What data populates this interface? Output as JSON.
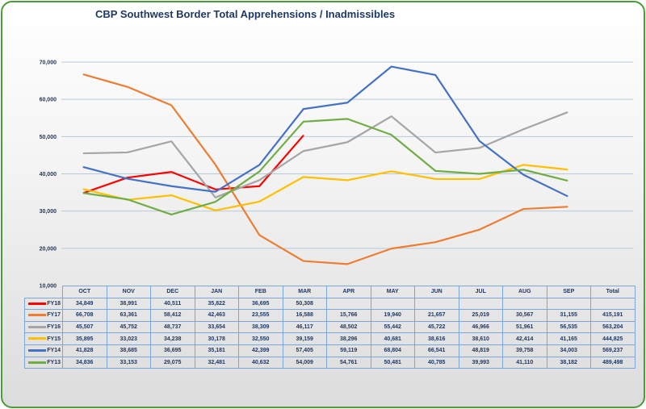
{
  "chart_data": {
    "type": "line",
    "title": "CBP Southwest Border Total Apprehensions / Inadmissibles",
    "categories": [
      "OCT",
      "NOV",
      "DEC",
      "JAN",
      "FEB",
      "MAR",
      "APR",
      "MAY",
      "JUN",
      "JUL",
      "AUG",
      "SEP"
    ],
    "total_label": "Total",
    "ylim": [
      10000,
      70000
    ],
    "yticks": [
      "10,000",
      "20,000",
      "30,000",
      "40,000",
      "50,000",
      "60,000",
      "70,000"
    ],
    "ytick_values": [
      10000,
      20000,
      30000,
      40000,
      50000,
      60000,
      70000
    ],
    "grid": true,
    "legend": "table-left",
    "series": [
      {
        "name": "FY18",
        "color": "#ff0000",
        "values": [
          34849,
          38991,
          40511,
          35822,
          36695,
          50308,
          null,
          null,
          null,
          null,
          null,
          null
        ],
        "labels": [
          "34,849",
          "38,991",
          "40,511",
          "35,822",
          "36,695",
          "50,308",
          "",
          "",
          "",
          "",
          "",
          ""
        ],
        "total": ""
      },
      {
        "name": "FY17",
        "color": "#ed7d31",
        "values": [
          66708,
          63361,
          58412,
          42463,
          23555,
          16588,
          15766,
          19940,
          21657,
          25019,
          30567,
          31155
        ],
        "labels": [
          "66,708",
          "63,361",
          "58,412",
          "42,463",
          "23,555",
          "16,588",
          "15,766",
          "19,940",
          "21,657",
          "25,019",
          "30,567",
          "31,155"
        ],
        "total": "415,191"
      },
      {
        "name": "FY16",
        "color": "#a5a5a5",
        "values": [
          45507,
          45752,
          48737,
          33654,
          38309,
          46117,
          48502,
          55442,
          45722,
          46966,
          51961,
          56535
        ],
        "labels": [
          "45,507",
          "45,752",
          "48,737",
          "33,654",
          "38,309",
          "46,117",
          "48,502",
          "55,442",
          "45,722",
          "46,966",
          "51,961",
          "56,535"
        ],
        "total": "563,204"
      },
      {
        "name": "FY15",
        "color": "#ffc000",
        "values": [
          35895,
          33023,
          34238,
          30178,
          32550,
          39159,
          38296,
          40681,
          38616,
          38610,
          42414,
          41165
        ],
        "labels": [
          "35,895",
          "33,023",
          "34,238",
          "30,178",
          "32,550",
          "39,159",
          "38,296",
          "40,681",
          "38,616",
          "38,610",
          "42,414",
          "41,165"
        ],
        "total": "444,825"
      },
      {
        "name": "FY14",
        "color": "#4472c4",
        "values": [
          41828,
          38685,
          36695,
          35181,
          42399,
          57405,
          59119,
          68804,
          66541,
          48819,
          39758,
          34003
        ],
        "labels": [
          "41,828",
          "38,685",
          "36,695",
          "35,181",
          "42,399",
          "57,405",
          "59,119",
          "68,804",
          "66,541",
          "48,819",
          "39,758",
          "34,003"
        ],
        "total": "569,237"
      },
      {
        "name": "FY13",
        "color": "#70ad47",
        "values": [
          34836,
          33153,
          29075,
          32481,
          40632,
          54009,
          54761,
          50481,
          40785,
          39993,
          41110,
          38182
        ],
        "labels": [
          "34,836",
          "33,153",
          "29,075",
          "32,481",
          "40,632",
          "54,009",
          "54,761",
          "50,481",
          "40,785",
          "39,993",
          "41,110",
          "38,182"
        ],
        "total": "489,498"
      }
    ]
  }
}
